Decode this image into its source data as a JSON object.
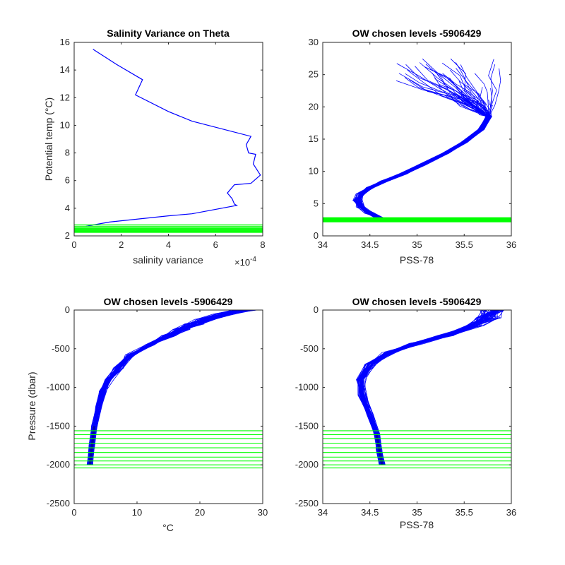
{
  "colors": {
    "profile": "#0000ff",
    "chosen_level": "#00ff00",
    "axis": "#262626"
  },
  "chart_data": [
    {
      "id": "p1",
      "type": "line",
      "title": "Salinity Variance on Theta",
      "xlabel": "salinity variance",
      "ylabel": "Potential temp (°C)",
      "xlim": [
        0,
        8
      ],
      "ylim": [
        2,
        16
      ],
      "xticks": [
        0,
        2,
        4,
        6,
        8
      ],
      "yticks": [
        2,
        4,
        6,
        8,
        10,
        12,
        14,
        16
      ],
      "x_multiplier_text": "×10",
      "x_multiplier_exp": "-4",
      "series": [
        {
          "color": "#0000ff",
          "points": [
            [
              0.8,
              15.5
            ],
            [
              1.8,
              14.4
            ],
            [
              2.9,
              13.3
            ],
            [
              2.6,
              12.2
            ],
            [
              4.0,
              11.0
            ],
            [
              5.0,
              10.3
            ],
            [
              7.5,
              9.2
            ],
            [
              7.3,
              8.6
            ],
            [
              7.4,
              8.0
            ],
            [
              7.7,
              7.9
            ],
            [
              7.6,
              7.2
            ],
            [
              7.9,
              6.4
            ],
            [
              7.5,
              5.8
            ],
            [
              6.8,
              5.7
            ],
            [
              6.5,
              5.1
            ],
            [
              6.7,
              4.7
            ],
            [
              6.8,
              4.3
            ],
            [
              6.9,
              4.2
            ],
            [
              5.0,
              3.6
            ],
            [
              4.0,
              3.45
            ],
            [
              1.5,
              3.0
            ],
            [
              0.5,
              2.7
            ]
          ]
        }
      ],
      "chosen_levels": [
        2.25,
        2.3,
        2.35,
        2.4,
        2.45,
        2.5,
        2.55,
        2.6,
        2.7,
        2.8
      ]
    },
    {
      "id": "p2",
      "type": "line",
      "title": "OW chosen levels -5906429",
      "xlabel": "PSS-78",
      "ylabel": "",
      "xlim": [
        34,
        36
      ],
      "ylim": [
        0,
        30
      ],
      "xticks": [
        34,
        34.5,
        35,
        35.5,
        36
      ],
      "yticks": [
        0,
        5,
        10,
        15,
        20,
        25,
        30
      ],
      "base_profile": [
        [
          34.6,
          2.8
        ],
        [
          34.5,
          3.5
        ],
        [
          34.4,
          4.5
        ],
        [
          34.37,
          5.5
        ],
        [
          34.4,
          6.5
        ],
        [
          34.5,
          7.5
        ],
        [
          34.65,
          8.5
        ],
        [
          34.85,
          9.6
        ],
        [
          35.05,
          11.0
        ],
        [
          35.3,
          12.8
        ],
        [
          35.5,
          14.5
        ],
        [
          35.68,
          16.5
        ],
        [
          35.76,
          18.5
        ]
      ],
      "surface_spread": {
        "x_min": 34.8,
        "x_max": 35.9,
        "y_min": 18.5,
        "y_max": 27.5
      },
      "n_profiles": 48,
      "chosen_levels": [
        2.2,
        2.3,
        2.4,
        2.5,
        2.6,
        2.7,
        2.8
      ]
    },
    {
      "id": "p3",
      "type": "line",
      "title": "OW chosen levels -5906429",
      "xlabel": "°C",
      "ylabel": "Pressure (dbar)",
      "xlim": [
        0,
        30
      ],
      "ylim": [
        -2500,
        0
      ],
      "xticks": [
        0,
        10,
        20,
        30
      ],
      "yticks": [
        -2500,
        -2000,
        -1500,
        -1000,
        -500,
        0
      ],
      "base_profile": [
        [
          27,
          0
        ],
        [
          24,
          -50
        ],
        [
          21,
          -120
        ],
        [
          19,
          -180
        ],
        [
          17,
          -250
        ],
        [
          15,
          -330
        ],
        [
          12,
          -450
        ],
        [
          9,
          -580
        ],
        [
          7,
          -750
        ],
        [
          5.5,
          -900
        ],
        [
          4.5,
          -1050
        ],
        [
          3.8,
          -1250
        ],
        [
          3.2,
          -1500
        ],
        [
          2.8,
          -1750
        ],
        [
          2.5,
          -2000
        ]
      ],
      "n_profiles": 48,
      "chosen_levels": [
        -1560,
        -1610,
        -1660,
        -1720,
        -1780,
        -1840,
        -1900,
        -1950,
        -2000,
        -2040
      ]
    },
    {
      "id": "p4",
      "type": "line",
      "title": "OW chosen levels -5906429",
      "xlabel": "PSS-78",
      "ylabel": "",
      "xlim": [
        34,
        36
      ],
      "ylim": [
        -2500,
        0
      ],
      "xticks": [
        34,
        34.5,
        35,
        35.5,
        36
      ],
      "yticks": [
        -2500,
        -2000,
        -1500,
        -1000,
        -500,
        0
      ],
      "base_profile": [
        [
          35.8,
          0
        ],
        [
          35.75,
          -100
        ],
        [
          35.6,
          -200
        ],
        [
          35.3,
          -330
        ],
        [
          35.0,
          -430
        ],
        [
          34.7,
          -550
        ],
        [
          34.5,
          -700
        ],
        [
          34.4,
          -900
        ],
        [
          34.42,
          -1100
        ],
        [
          34.5,
          -1350
        ],
        [
          34.57,
          -1600
        ],
        [
          34.6,
          -1800
        ],
        [
          34.63,
          -2000
        ]
      ],
      "n_profiles": 48,
      "chosen_levels": [
        -1560,
        -1610,
        -1660,
        -1720,
        -1780,
        -1840,
        -1900,
        -1950,
        -2000,
        -2040
      ]
    }
  ]
}
